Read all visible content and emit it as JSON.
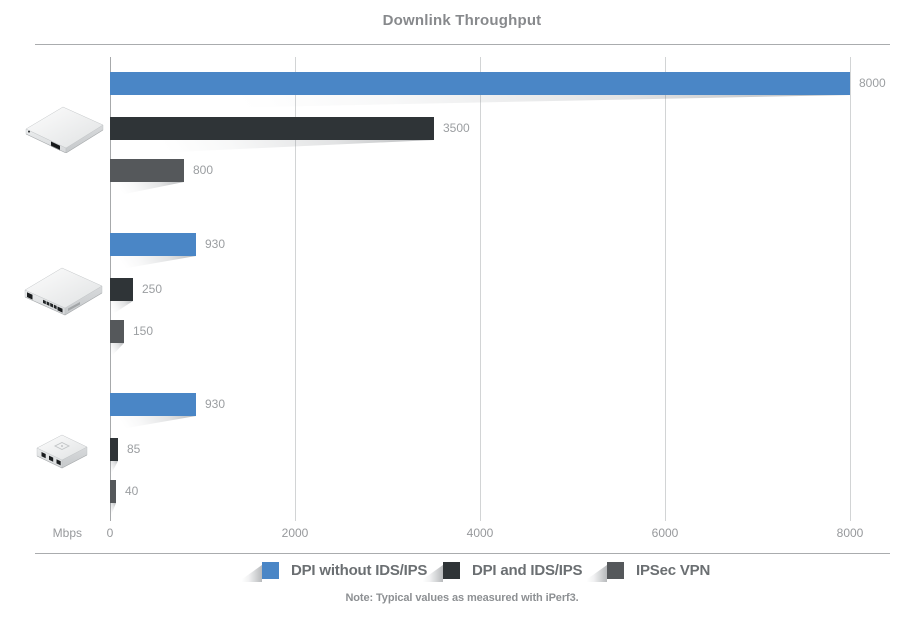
{
  "title": "Downlink Throughput",
  "axis": {
    "unit_label": "Mbps",
    "ticks": [
      0,
      2000,
      4000,
      6000,
      8000
    ],
    "max": 8000
  },
  "legend": [
    {
      "label": "DPI without IDS/IPS",
      "color": "#4a86c6"
    },
    {
      "label": "DPI and IDS/IPS",
      "color": "#2f3437"
    },
    {
      "label": "IPSec VPN",
      "color": "#55585b"
    }
  ],
  "note": "Note: Typical values as measured with iPerf3.",
  "chart_data": {
    "type": "bar",
    "orientation": "horizontal",
    "title": "Downlink Throughput",
    "xlabel": "Mbps",
    "xlim": [
      0,
      8000
    ],
    "xticks": [
      0,
      2000,
      4000,
      6000,
      8000
    ],
    "grid": true,
    "legend_position": "bottom",
    "categories": [
      "rackmount-router-large",
      "rackmount-router-medium",
      "desktop-gateway-small"
    ],
    "series": [
      {
        "name": "DPI without IDS/IPS",
        "color": "#4a86c6",
        "values": [
          8000,
          930,
          930
        ]
      },
      {
        "name": "DPI and IDS/IPS",
        "color": "#2f3437",
        "values": [
          3500,
          250,
          85
        ]
      },
      {
        "name": "IPSec VPN",
        "color": "#55585b",
        "values": [
          800,
          150,
          40
        ]
      }
    ],
    "data_labels": [
      [
        8000,
        930,
        930
      ],
      [
        3500,
        250,
        85
      ],
      [
        800,
        150,
        40
      ]
    ]
  }
}
